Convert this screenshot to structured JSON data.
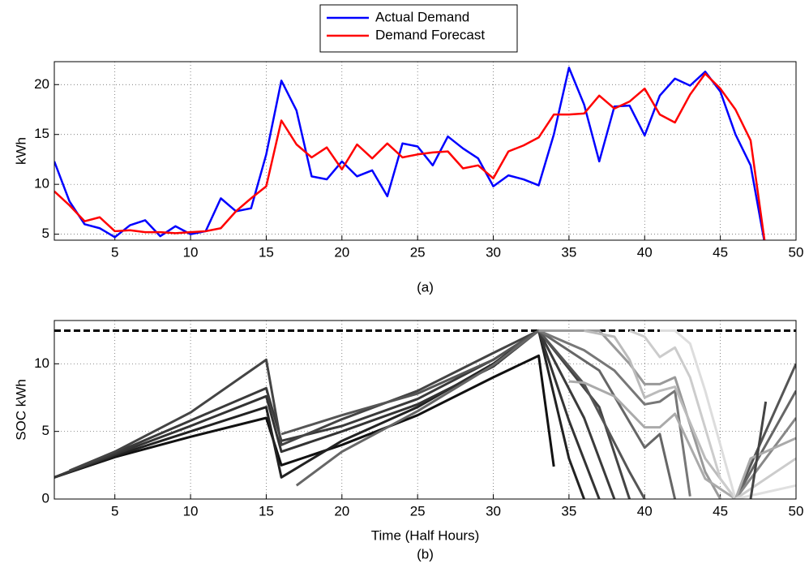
{
  "chart_data": [
    {
      "type": "line",
      "ylabel": "kWh",
      "caption": "(a)",
      "legend": "top",
      "grid": true,
      "x": [
        1,
        2,
        3,
        4,
        5,
        6,
        7,
        8,
        9,
        10,
        11,
        12,
        13,
        14,
        15,
        16,
        17,
        18,
        19,
        20,
        21,
        22,
        23,
        24,
        25,
        26,
        27,
        28,
        29,
        30,
        31,
        32,
        33,
        34,
        35,
        36,
        37,
        38,
        39,
        40,
        41,
        42,
        43,
        44,
        45,
        46,
        47,
        48
      ],
      "xlim": [
        1,
        50
      ],
      "xticks": [
        5,
        10,
        15,
        20,
        25,
        30,
        35,
        40,
        45,
        50
      ],
      "ylim": [
        4.4,
        22.3
      ],
      "yticks": [
        5,
        10,
        15,
        20
      ],
      "series": [
        {
          "name": "Actual Demand",
          "color": "#0000ff",
          "values": [
            12.3,
            8.3,
            6.0,
            5.6,
            4.7,
            5.9,
            6.4,
            4.8,
            5.8,
            5.0,
            5.3,
            8.6,
            7.3,
            7.6,
            13.0,
            20.4,
            17.4,
            10.8,
            10.5,
            12.3,
            10.8,
            11.4,
            8.8,
            14.1,
            13.8,
            11.9,
            14.8,
            13.6,
            12.6,
            9.8,
            10.9,
            10.5,
            9.9,
            15.0,
            21.7,
            18.0,
            12.3,
            17.8,
            17.9,
            14.9,
            18.9,
            20.6,
            19.9,
            21.3,
            19.3,
            15.0,
            11.9,
            3.5
          ]
        },
        {
          "name": "Demand Forecast",
          "color": "#ff0000",
          "values": [
            9.3,
            7.9,
            6.3,
            6.7,
            5.3,
            5.4,
            5.2,
            5.2,
            5.1,
            5.2,
            5.3,
            5.6,
            7.3,
            8.6,
            9.8,
            16.4,
            14.0,
            12.7,
            13.7,
            11.5,
            14.0,
            12.6,
            14.1,
            12.7,
            13.0,
            13.2,
            13.3,
            11.6,
            11.9,
            10.6,
            13.3,
            13.9,
            14.7,
            17.0,
            17.0,
            17.1,
            18.9,
            17.6,
            18.3,
            19.6,
            17.0,
            16.2,
            19.0,
            21.1,
            19.6,
            17.5,
            14.4,
            3.5
          ]
        }
      ]
    },
    {
      "type": "line",
      "ylabel": "SOC kWh",
      "xlabel": "Time (Half Hours)",
      "caption": "(b)",
      "grid": true,
      "xlim": [
        1,
        50
      ],
      "xticks": [
        5,
        10,
        15,
        20,
        25,
        30,
        35,
        40,
        45,
        50
      ],
      "ylim": [
        0,
        13.2
      ],
      "yticks": [
        0,
        5,
        10
      ],
      "hline": {
        "value": 12.45,
        "color": "#000000",
        "dashed": true
      },
      "series": [
        {
          "color": "#111111",
          "x": [
            1,
            5,
            10,
            15,
            16,
            20,
            25,
            30,
            33,
            34
          ],
          "values": [
            1.6,
            3.1,
            4.6,
            6.0,
            2.5,
            4.0,
            6.2,
            9.0,
            10.6,
            2.4
          ]
        },
        {
          "color": "#222222",
          "x": [
            1,
            5,
            10,
            15,
            16,
            20,
            25,
            30,
            33,
            35,
            36
          ],
          "values": [
            1.6,
            3.2,
            5.0,
            6.8,
            1.6,
            4.3,
            6.8,
            10.0,
            12.45,
            3.0,
            0
          ]
        },
        {
          "color": "#333333",
          "x": [
            1,
            5,
            10,
            15,
            16,
            20,
            25,
            30,
            33,
            35,
            37
          ],
          "values": [
            1.6,
            3.3,
            5.4,
            7.6,
            3.5,
            5.0,
            7.0,
            9.8,
            12.45,
            5.8,
            0
          ]
        },
        {
          "color": "#3a3a3a",
          "x": [
            1,
            5,
            10,
            15,
            16,
            20,
            25,
            30,
            33,
            36,
            38
          ],
          "values": [
            1.6,
            3.4,
            5.8,
            8.2,
            4.3,
            5.4,
            7.4,
            10.3,
            12.45,
            6.0,
            0
          ]
        },
        {
          "color": "#444444",
          "x": [
            2,
            5,
            10,
            15,
            16,
            20,
            25,
            30,
            33,
            37,
            39
          ],
          "values": [
            2.1,
            3.5,
            6.4,
            10.3,
            4.0,
            5.9,
            8.0,
            10.8,
            12.45,
            6.8,
            0
          ]
        },
        {
          "color": "#555555",
          "x": [
            16,
            20,
            25,
            30,
            33,
            36,
            39,
            40
          ],
          "values": [
            4.8,
            6.2,
            7.8,
            10.3,
            12.45,
            8.5,
            2.0,
            0
          ]
        },
        {
          "color": "#666666",
          "x": [
            17,
            20,
            25,
            30,
            33,
            37,
            40,
            41,
            42
          ],
          "values": [
            1.0,
            3.5,
            6.5,
            9.9,
            12.45,
            9.5,
            3.8,
            4.8,
            0
          ]
        },
        {
          "color": "#777777",
          "x": [
            33,
            36,
            38,
            40,
            41,
            42,
            43
          ],
          "values": [
            12.45,
            11.0,
            9.5,
            7.0,
            7.2,
            8.0,
            0.2
          ]
        },
        {
          "color": "#999999",
          "x": [
            33,
            37,
            39,
            40,
            41,
            42,
            44,
            45
          ],
          "values": [
            12.45,
            12.45,
            10.0,
            8.5,
            8.5,
            9.0,
            2.0,
            0
          ]
        },
        {
          "color": "#aaaaaa",
          "x": [
            35,
            36,
            38,
            40,
            41,
            42,
            44,
            46
          ],
          "values": [
            8.7,
            8.6,
            7.6,
            5.3,
            5.3,
            6.3,
            1.5,
            0
          ]
        },
        {
          "color": "#bbbbbb",
          "x": [
            36,
            38,
            39,
            40,
            41,
            42,
            44,
            46
          ],
          "values": [
            12.45,
            12.0,
            10.3,
            7.5,
            8.0,
            8.3,
            3.0,
            0
          ]
        },
        {
          "color": "#cccccc",
          "x": [
            39,
            40,
            41,
            42,
            43,
            45,
            46
          ],
          "values": [
            12.45,
            12.0,
            10.5,
            11.2,
            9.0,
            1.5,
            0
          ]
        },
        {
          "color": "#dddddd",
          "x": [
            41,
            42,
            43,
            44,
            46
          ],
          "values": [
            12.45,
            12.45,
            11.5,
            8.0,
            0
          ]
        },
        {
          "color": "#555555",
          "x": [
            46,
            48,
            50
          ],
          "values": [
            0,
            5.0,
            10.0
          ]
        },
        {
          "color": "#666666",
          "x": [
            46,
            50
          ],
          "values": [
            0,
            8.0
          ]
        },
        {
          "color": "#888888",
          "x": [
            46,
            50
          ],
          "values": [
            0,
            6.0
          ]
        },
        {
          "color": "#aaaaaa",
          "x": [
            46,
            47,
            50
          ],
          "values": [
            0,
            3.0,
            4.5
          ]
        },
        {
          "color": "#cccccc",
          "x": [
            46,
            50
          ],
          "values": [
            0,
            3.0
          ]
        },
        {
          "color": "#e0e0e0",
          "x": [
            46,
            50
          ],
          "values": [
            0,
            1.0
          ]
        },
        {
          "color": "#444444",
          "x": [
            47,
            48
          ],
          "values": [
            0,
            7.2
          ]
        }
      ]
    }
  ]
}
